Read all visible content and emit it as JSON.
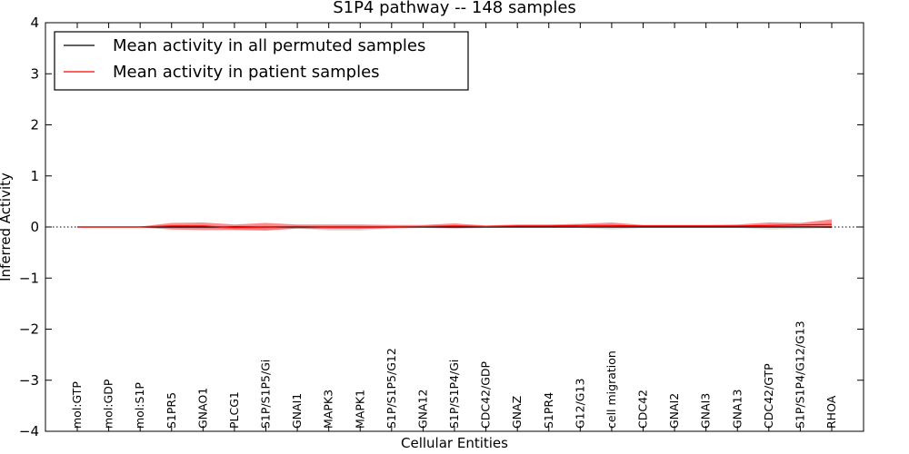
{
  "chart_data": {
    "type": "line",
    "title": "S1P4 pathway -- 148 samples",
    "xlabel": "Cellular Entities",
    "ylabel": "Inferred Activity",
    "ylim": [
      -4,
      4
    ],
    "yticks": [
      -4,
      -3,
      -2,
      -1,
      0,
      1,
      2,
      3,
      4
    ],
    "categories": [
      "mol:GTP",
      "mol:GDP",
      "mol:S1P",
      "S1PR5",
      "GNAO1",
      "PLCG1",
      "S1P/S1P5/Gi",
      "GNAI1",
      "MAPK3",
      "MAPK1",
      "S1P/S1P5/G12",
      "GNA12",
      "S1P/S1P4/Gi",
      "CDC42/GDP",
      "GNAZ",
      "S1PR4",
      "G12/G13",
      "cell migration",
      "CDC42",
      "GNAI2",
      "GNAI3",
      "GNA13",
      "CDC42/GTP",
      "S1P/S1P4/G12/G13",
      "RHOA"
    ],
    "legend_position": "top-left",
    "series": [
      {
        "name": "Mean activity in all permuted samples",
        "color": "#000000",
        "values": [
          0,
          0,
          0,
          0,
          0,
          0,
          0,
          0,
          0,
          0,
          0,
          0,
          0,
          0,
          0,
          0,
          0,
          0,
          0,
          0,
          0,
          0,
          0,
          0,
          0
        ],
        "band_upper": [
          0.01,
          0.01,
          0.01,
          0.01,
          0.01,
          0.02,
          0.02,
          0.01,
          0.02,
          0.02,
          0.01,
          0.01,
          0.02,
          0.01,
          0.01,
          0.01,
          0.01,
          0.02,
          0.01,
          0.01,
          0.01,
          0.01,
          0.02,
          0.02,
          0.01
        ],
        "band_lower": [
          -0.01,
          -0.01,
          -0.01,
          -0.02,
          -0.02,
          -0.04,
          -0.05,
          -0.03,
          -0.07,
          -0.07,
          -0.03,
          -0.02,
          -0.04,
          -0.02,
          -0.02,
          -0.02,
          -0.02,
          -0.05,
          -0.02,
          -0.02,
          -0.02,
          -0.02,
          -0.05,
          -0.04,
          -0.02
        ]
      },
      {
        "name": "Mean activity in patient samples",
        "color": "#ff0000",
        "values": [
          0.0,
          0.0,
          0.0,
          0.02,
          0.02,
          -0.01,
          0.0,
          0.01,
          0.0,
          0.0,
          0.0,
          0.01,
          0.02,
          0.01,
          0.02,
          0.02,
          0.03,
          0.03,
          0.02,
          0.02,
          0.02,
          0.02,
          0.03,
          0.04,
          0.05
        ],
        "band_upper": [
          0.01,
          0.01,
          0.01,
          0.08,
          0.09,
          0.05,
          0.08,
          0.05,
          0.05,
          0.05,
          0.04,
          0.04,
          0.07,
          0.03,
          0.05,
          0.05,
          0.06,
          0.09,
          0.04,
          0.04,
          0.04,
          0.05,
          0.09,
          0.08,
          0.15
        ],
        "band_lower": [
          -0.01,
          -0.01,
          -0.01,
          -0.05,
          -0.06,
          -0.06,
          -0.07,
          -0.03,
          -0.04,
          -0.04,
          -0.02,
          -0.01,
          -0.02,
          -0.01,
          -0.01,
          -0.01,
          0.0,
          -0.01,
          0.0,
          0.0,
          0.0,
          0.0,
          -0.01,
          0.0,
          -0.02
        ]
      }
    ]
  }
}
